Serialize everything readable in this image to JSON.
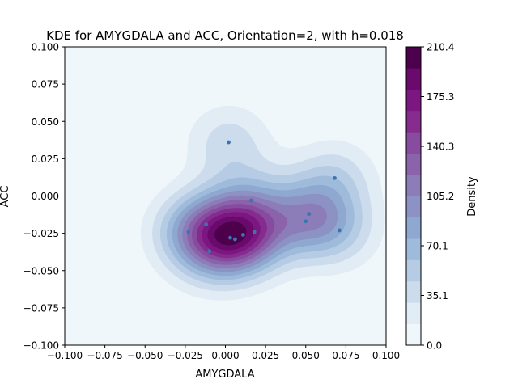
{
  "chart_data": {
    "type": "heatmap",
    "subtype": "kde-filled-contour-with-scatter",
    "title": "KDE for AMYGDALA and ACC, Orientation=2, with h=0.018",
    "xlabel": "AMYGDALA",
    "ylabel": "ACC",
    "xlim": [
      -0.1,
      0.1
    ],
    "ylim": [
      -0.1,
      0.1
    ],
    "xticks": [
      "−0.100",
      "−0.075",
      "−0.050",
      "−0.025",
      "0.000",
      "0.025",
      "0.050",
      "0.075",
      "0.100"
    ],
    "yticks": [
      "−0.100",
      "−0.075",
      "−0.050",
      "−0.025",
      "0.000",
      "0.025",
      "0.050",
      "0.075",
      "0.100"
    ],
    "grid": false,
    "colormap": "BuPu",
    "colorbar": {
      "label": "Density",
      "min": 0.0,
      "max": 210.4,
      "ticks": [
        "0.0",
        "35.1",
        "70.1",
        "105.2",
        "140.3",
        "175.3",
        "210.4"
      ],
      "levels": 14
    },
    "points": [
      {
        "x": 0.002,
        "y": 0.036
      },
      {
        "x": 0.068,
        "y": 0.012
      },
      {
        "x": 0.016,
        "y": -0.003
      },
      {
        "x": 0.052,
        "y": -0.012
      },
      {
        "x": 0.05,
        "y": -0.017
      },
      {
        "x": -0.012,
        "y": -0.019
      },
      {
        "x": -0.023,
        "y": -0.024
      },
      {
        "x": 0.071,
        "y": -0.023
      },
      {
        "x": 0.018,
        "y": -0.024
      },
      {
        "x": 0.011,
        "y": -0.026
      },
      {
        "x": 0.003,
        "y": -0.028
      },
      {
        "x": 0.006,
        "y": -0.029
      },
      {
        "x": -0.01,
        "y": -0.037
      }
    ],
    "point_color": "#3b75af"
  }
}
